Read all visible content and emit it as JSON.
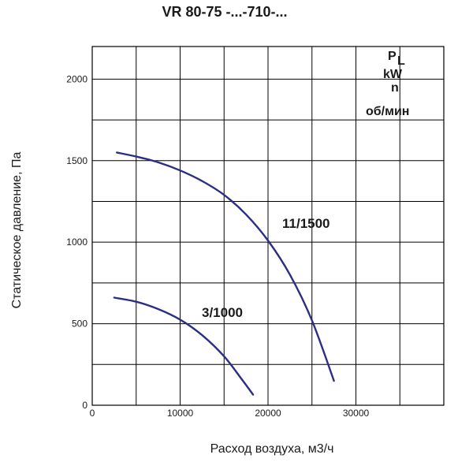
{
  "chart_data": {
    "type": "line",
    "title": "VR 80-75 -...-710-...",
    "xlabel": "Расход воздуха, м3/ч",
    "ylabel": "Статическое давление, Па",
    "xlim": [
      0,
      40000
    ],
    "ylim": [
      0,
      2200
    ],
    "xticks": [
      0,
      10000,
      20000,
      30000
    ],
    "yticks": [
      0,
      500,
      1000,
      1500,
      2000
    ],
    "grid": true,
    "legend_header": [
      "P",
      "L",
      "kW",
      "n",
      "об/мин"
    ],
    "series": [
      {
        "name": "11/1500",
        "color": "#2b2f84",
        "x": [
          2800,
          5000,
          7500,
          10000,
          12500,
          15000,
          17500,
          20000,
          22500,
          25000,
          27500
        ],
        "y": [
          1550,
          1525,
          1490,
          1440,
          1375,
          1290,
          1170,
          1010,
          800,
          520,
          150
        ]
      },
      {
        "name": "3/1000",
        "color": "#2b2f84",
        "x": [
          2500,
          5000,
          7500,
          10000,
          12500,
          15000,
          17000,
          18300
        ],
        "y": [
          660,
          635,
          590,
          525,
          430,
          300,
          160,
          65
        ]
      }
    ],
    "annotations": [
      {
        "text": "11/1500",
        "series": "11/1500"
      },
      {
        "text": "3/1000",
        "series": "3/1000"
      }
    ]
  }
}
